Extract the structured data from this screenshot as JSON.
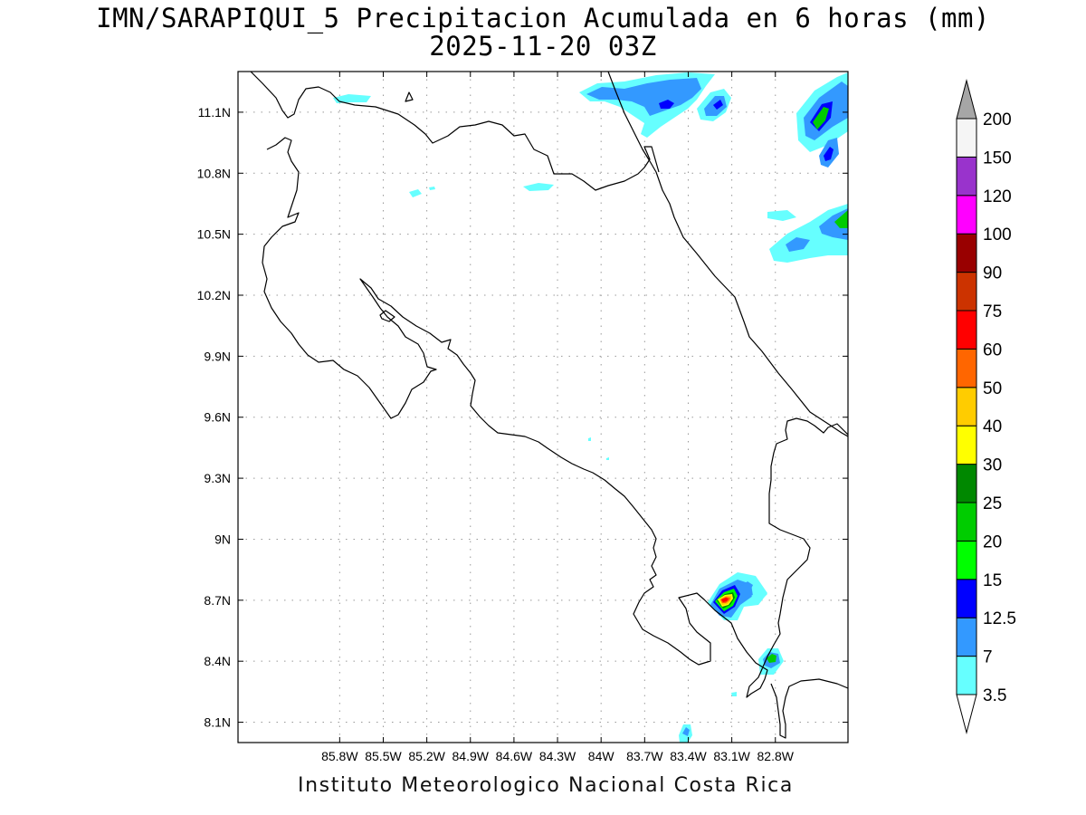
{
  "title": {
    "line1": "IMN/SARAPIQUI_5 Precipitacion Acumulada en 6 horas (mm)",
    "line2": "2025-11-20 03Z"
  },
  "footer": "Instituto Meteorologico Nacional Costa Rica",
  "map": {
    "lon_range": [
      -86.5,
      -82.3
    ],
    "lat_range": [
      8.0,
      11.3
    ],
    "lat_ticks": [
      {
        "value": 11.1,
        "label": "11.1N"
      },
      {
        "value": 10.8,
        "label": "10.8N"
      },
      {
        "value": 10.5,
        "label": "10.5N"
      },
      {
        "value": 10.2,
        "label": "10.2N"
      },
      {
        "value": 9.9,
        "label": "9.9N"
      },
      {
        "value": 9.6,
        "label": "9.6N"
      },
      {
        "value": 9.3,
        "label": "9.3N"
      },
      {
        "value": 9.0,
        "label": "9N"
      },
      {
        "value": 8.7,
        "label": "8.7N"
      },
      {
        "value": 8.4,
        "label": "8.4N"
      },
      {
        "value": 8.1,
        "label": "8.1N"
      }
    ],
    "lon_ticks": [
      {
        "value": -85.8,
        "label": "85.8W"
      },
      {
        "value": -85.5,
        "label": "85.5W"
      },
      {
        "value": -85.2,
        "label": "85.2W"
      },
      {
        "value": -84.9,
        "label": "84.9W"
      },
      {
        "value": -84.6,
        "label": "84.6W"
      },
      {
        "value": -84.3,
        "label": "84.3W"
      },
      {
        "value": -84.0,
        "label": "84W"
      },
      {
        "value": -83.7,
        "label": "83.7W"
      },
      {
        "value": -83.4,
        "label": "83.4W"
      },
      {
        "value": -83.1,
        "label": "83.1W"
      },
      {
        "value": -82.8,
        "label": "82.8W"
      }
    ],
    "grid": true
  },
  "colorbar": {
    "levels": [
      {
        "label": "3.5",
        "color": "#ffffff"
      },
      {
        "label": "7",
        "color": "#66ffff"
      },
      {
        "label": "12.5",
        "color": "#3399ff"
      },
      {
        "label": "15",
        "color": "#0000ff"
      },
      {
        "label": "20",
        "color": "#00ff00"
      },
      {
        "label": "25",
        "color": "#00cc00"
      },
      {
        "label": "30",
        "color": "#008800"
      },
      {
        "label": "40",
        "color": "#ffff00"
      },
      {
        "label": "50",
        "color": "#ffcc00"
      },
      {
        "label": "60",
        "color": "#ff6600"
      },
      {
        "label": "75",
        "color": "#ff0000"
      },
      {
        "label": "90",
        "color": "#cc3300"
      },
      {
        "label": "100",
        "color": "#990000"
      },
      {
        "label": "120",
        "color": "#ff00ff"
      },
      {
        "label": "150",
        "color": "#9933cc"
      },
      {
        "label": "200",
        "color": "#f5f5f5"
      }
    ],
    "over_color": "#a6a6a6",
    "under_color": "#ffffff"
  }
}
